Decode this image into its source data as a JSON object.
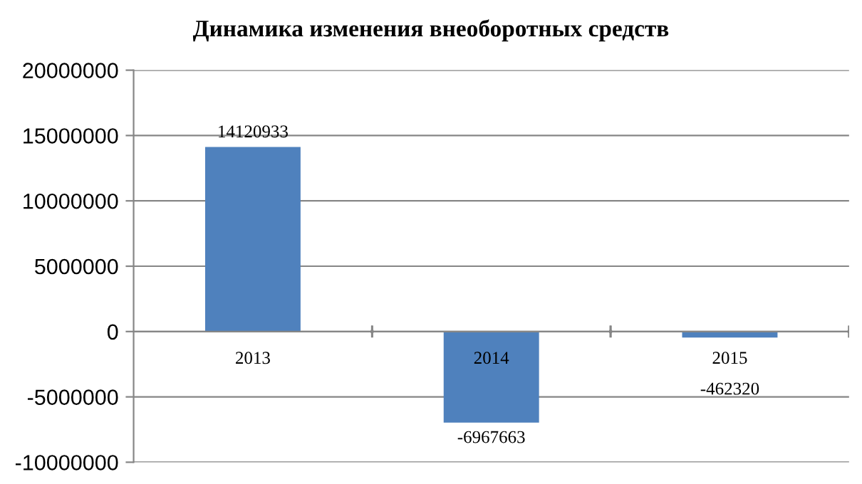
{
  "chart_data": {
    "type": "bar",
    "title": "Динамика изменения внеоборотных средств",
    "categories": [
      "2013",
      "2014",
      "2015"
    ],
    "values": [
      14120933,
      -6967663,
      -462320
    ],
    "color": "#4f81bd",
    "ylim": [
      -10000000,
      20000000
    ],
    "yticks": [
      -10000000,
      -5000000,
      0,
      5000000,
      10000000,
      15000000,
      20000000
    ],
    "grid": "y",
    "data_labels": true
  }
}
